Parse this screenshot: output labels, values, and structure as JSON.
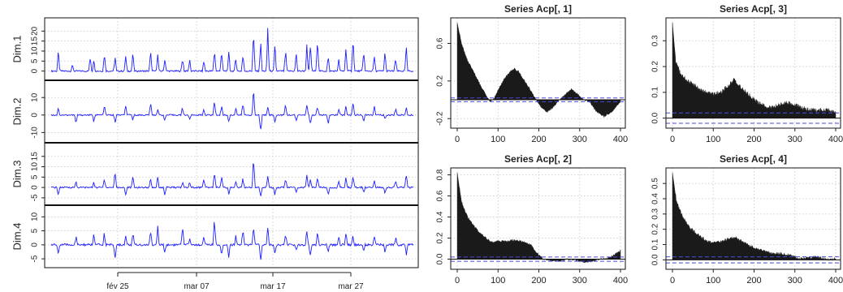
{
  "chart_data": [
    {
      "type": "line",
      "panels": [
        {
          "name": "Dim.1",
          "ylim": [
            -3,
            25
          ],
          "yticks": [
            "0",
            "5",
            "10",
            "15",
            "20"
          ],
          "baseline": 0,
          "spikes": [
            [
              0.14,
              12
            ],
            [
              0.18,
              4
            ],
            [
              0.23,
              8
            ],
            [
              0.24,
              6
            ],
            [
              0.27,
              12
            ],
            [
              0.3,
              9
            ],
            [
              0.33,
              9
            ],
            [
              0.35,
              10
            ],
            [
              0.4,
              13
            ],
            [
              0.42,
              9
            ],
            [
              0.44,
              7
            ],
            [
              0.49,
              8
            ],
            [
              0.51,
              7
            ],
            [
              0.55,
              6
            ],
            [
              0.58,
              14
            ],
            [
              0.6,
              12
            ],
            [
              0.62,
              11
            ],
            [
              0.64,
              8
            ],
            [
              0.66,
              10
            ],
            [
              0.69,
              25
            ],
            [
              0.71,
              17
            ],
            [
              0.73,
              22
            ],
            [
              0.75,
              14
            ],
            [
              0.78,
              12
            ],
            [
              0.81,
              10
            ],
            [
              0.84,
              14
            ],
            [
              0.85,
              17
            ],
            [
              0.87,
              20
            ],
            [
              0.9,
              9
            ],
            [
              0.93,
              6
            ],
            [
              0.95,
              13
            ],
            [
              0.97,
              20
            ],
            [
              1.0,
              12
            ],
            [
              1.03,
              9
            ],
            [
              1.06,
              11
            ],
            [
              1.09,
              7
            ],
            [
              1.12,
              13
            ]
          ]
        },
        {
          "name": "Dim.2",
          "ylim": [
            -14,
            18
          ],
          "yticks": [
            "-10",
            "0",
            "10"
          ],
          "baseline": 0,
          "spikes": [
            [
              0.14,
              5
            ],
            [
              0.19,
              -6
            ],
            [
              0.24,
              -4
            ],
            [
              0.27,
              7
            ],
            [
              0.3,
              -5
            ],
            [
              0.33,
              6
            ],
            [
              0.35,
              -3
            ],
            [
              0.4,
              9
            ],
            [
              0.42,
              4
            ],
            [
              0.44,
              -4
            ],
            [
              0.49,
              5
            ],
            [
              0.51,
              -3
            ],
            [
              0.55,
              4
            ],
            [
              0.58,
              10
            ],
            [
              0.6,
              6
            ],
            [
              0.62,
              -5
            ],
            [
              0.64,
              5
            ],
            [
              0.66,
              8
            ],
            [
              0.69,
              16
            ],
            [
              0.71,
              -12
            ],
            [
              0.73,
              6
            ],
            [
              0.75,
              -5
            ],
            [
              0.78,
              7
            ],
            [
              0.81,
              -4
            ],
            [
              0.84,
              7
            ],
            [
              0.85,
              -7
            ],
            [
              0.87,
              6
            ],
            [
              0.9,
              -6
            ],
            [
              0.93,
              4
            ],
            [
              0.95,
              6
            ],
            [
              0.97,
              9
            ],
            [
              1.0,
              -4
            ],
            [
              1.03,
              6
            ],
            [
              1.06,
              -3
            ],
            [
              1.09,
              4
            ],
            [
              1.12,
              5
            ]
          ]
        },
        {
          "name": "Dim.3",
          "ylim": [
            -7,
            20
          ],
          "yticks": [
            "-5",
            "0",
            "5",
            "10",
            "15"
          ],
          "baseline": 0,
          "spikes": [
            [
              0.14,
              -5
            ],
            [
              0.19,
              3
            ],
            [
              0.24,
              3
            ],
            [
              0.27,
              5
            ],
            [
              0.3,
              9
            ],
            [
              0.33,
              -4
            ],
            [
              0.35,
              7
            ],
            [
              0.4,
              5
            ],
            [
              0.42,
              6
            ],
            [
              0.44,
              -4
            ],
            [
              0.49,
              3
            ],
            [
              0.51,
              3
            ],
            [
              0.55,
              5
            ],
            [
              0.58,
              9
            ],
            [
              0.6,
              6
            ],
            [
              0.62,
              -4
            ],
            [
              0.64,
              4
            ],
            [
              0.66,
              5
            ],
            [
              0.69,
              18
            ],
            [
              0.71,
              -6
            ],
            [
              0.73,
              8
            ],
            [
              0.75,
              -4
            ],
            [
              0.78,
              5
            ],
            [
              0.81,
              -3
            ],
            [
              0.84,
              8
            ],
            [
              0.85,
              5
            ],
            [
              0.87,
              7
            ],
            [
              0.9,
              -4
            ],
            [
              0.93,
              3
            ],
            [
              0.95,
              5
            ],
            [
              0.97,
              6
            ],
            [
              1.0,
              -3
            ],
            [
              1.03,
              4
            ],
            [
              1.06,
              -3
            ],
            [
              1.09,
              4
            ],
            [
              1.12,
              8
            ]
          ]
        },
        {
          "name": "Dim.4",
          "ylim": [
            -7,
            13
          ],
          "yticks": [
            "-5",
            "0",
            "5",
            "10"
          ],
          "baseline": 0,
          "spikes": [
            [
              0.14,
              -4
            ],
            [
              0.19,
              3
            ],
            [
              0.24,
              4
            ],
            [
              0.27,
              5
            ],
            [
              0.3,
              -6
            ],
            [
              0.33,
              4
            ],
            [
              0.35,
              5
            ],
            [
              0.4,
              6
            ],
            [
              0.42,
              7
            ],
            [
              0.44,
              -3
            ],
            [
              0.49,
              7
            ],
            [
              0.51,
              3
            ],
            [
              0.55,
              4
            ],
            [
              0.58,
              11
            ],
            [
              0.6,
              -4
            ],
            [
              0.62,
              -5
            ],
            [
              0.64,
              4
            ],
            [
              0.66,
              6
            ],
            [
              0.69,
              8
            ],
            [
              0.71,
              -6
            ],
            [
              0.73,
              7
            ],
            [
              0.75,
              -4
            ],
            [
              0.78,
              5
            ],
            [
              0.81,
              -3
            ],
            [
              0.84,
              6
            ],
            [
              0.85,
              -5
            ],
            [
              0.87,
              6
            ],
            [
              0.9,
              -3
            ],
            [
              0.93,
              4
            ],
            [
              0.95,
              5
            ],
            [
              0.97,
              4
            ],
            [
              1.0,
              -3
            ],
            [
              1.03,
              4
            ],
            [
              1.06,
              -3
            ],
            [
              1.09,
              3
            ],
            [
              1.12,
              -4
            ]
          ]
        }
      ],
      "x_ticklabels": [
        "fév 25",
        "mar 07",
        "mar 17",
        "mar 27"
      ],
      "grid": true
    },
    {
      "type": "bar",
      "title": "Series Acp[, 1]",
      "xlim": [
        0,
        400
      ],
      "ylim": [
        -0.25,
        0.82
      ],
      "xticks": [
        "0",
        "100",
        "200",
        "300",
        "400"
      ],
      "yticks": [
        "-0.2",
        "0.2",
        "0.6"
      ],
      "ci": 0.02,
      "acf_points": [
        [
          0,
          0.82
        ],
        [
          10,
          0.6
        ],
        [
          25,
          0.42
        ],
        [
          40,
          0.3
        ],
        [
          55,
          0.17
        ],
        [
          70,
          0.05
        ],
        [
          80,
          -0.02
        ],
        [
          90,
          0.01
        ],
        [
          100,
          0.1
        ],
        [
          115,
          0.22
        ],
        [
          130,
          0.3
        ],
        [
          140,
          0.33
        ],
        [
          150,
          0.3
        ],
        [
          165,
          0.2
        ],
        [
          180,
          0.1
        ],
        [
          190,
          0.02
        ],
        [
          205,
          -0.08
        ],
        [
          220,
          -0.13
        ],
        [
          235,
          -0.08
        ],
        [
          250,
          0.0
        ],
        [
          265,
          0.06
        ],
        [
          280,
          0.11
        ],
        [
          295,
          0.06
        ],
        [
          310,
          0.0
        ],
        [
          325,
          -0.03
        ],
        [
          340,
          -0.12
        ],
        [
          360,
          -0.18
        ],
        [
          380,
          -0.12
        ],
        [
          400,
          -0.02
        ]
      ]
    },
    {
      "type": "bar",
      "title": "Series Acp[, 3]",
      "xlim": [
        0,
        400
      ],
      "ylim": [
        -0.02,
        0.37
      ],
      "xticks": [
        "0",
        "100",
        "200",
        "300",
        "400"
      ],
      "yticks": [
        "0.0",
        "0.1",
        "0.2",
        "0.3"
      ],
      "ci": 0.02,
      "acf_points": [
        [
          0,
          0.37
        ],
        [
          8,
          0.22
        ],
        [
          20,
          0.17
        ],
        [
          40,
          0.14
        ],
        [
          60,
          0.12
        ],
        [
          80,
          0.1
        ],
        [
          100,
          0.09
        ],
        [
          120,
          0.1
        ],
        [
          140,
          0.13
        ],
        [
          150,
          0.15
        ],
        [
          160,
          0.13
        ],
        [
          180,
          0.1
        ],
        [
          200,
          0.07
        ],
        [
          220,
          0.05
        ],
        [
          240,
          0.04
        ],
        [
          260,
          0.05
        ],
        [
          280,
          0.06
        ],
        [
          300,
          0.05
        ],
        [
          320,
          0.04
        ],
        [
          340,
          0.03
        ],
        [
          360,
          0.03
        ],
        [
          380,
          0.03
        ],
        [
          400,
          0.02
        ]
      ]
    },
    {
      "type": "bar",
      "title": "Series Acp[, 2]",
      "xlim": [
        0,
        400
      ],
      "ylim": [
        -0.05,
        0.82
      ],
      "xticks": [
        "0",
        "100",
        "200",
        "300",
        "400"
      ],
      "yticks": [
        "0.0",
        "0.2",
        "0.4",
        "0.6",
        "0.8"
      ],
      "ci": 0.02,
      "acf_points": [
        [
          0,
          0.82
        ],
        [
          10,
          0.55
        ],
        [
          25,
          0.4
        ],
        [
          40,
          0.32
        ],
        [
          55,
          0.25
        ],
        [
          70,
          0.2
        ],
        [
          85,
          0.16
        ],
        [
          100,
          0.17
        ],
        [
          120,
          0.17
        ],
        [
          140,
          0.18
        ],
        [
          160,
          0.17
        ],
        [
          180,
          0.14
        ],
        [
          195,
          0.06
        ],
        [
          210,
          0.0
        ],
        [
          230,
          -0.01
        ],
        [
          250,
          -0.02
        ],
        [
          270,
          0.0
        ],
        [
          290,
          -0.01
        ],
        [
          310,
          -0.03
        ],
        [
          330,
          -0.02
        ],
        [
          350,
          0.0
        ],
        [
          370,
          0.01
        ],
        [
          385,
          0.04
        ],
        [
          400,
          0.08
        ]
      ]
    },
    {
      "type": "bar",
      "title": "Series Acp[, 4]",
      "xlim": [
        0,
        400
      ],
      "ylim": [
        -0.03,
        0.57
      ],
      "xticks": [
        "0",
        "100",
        "200",
        "300",
        "400"
      ],
      "yticks": [
        "0.0",
        "0.1",
        "0.2",
        "0.3",
        "0.4",
        "0.5"
      ],
      "ci": 0.02,
      "acf_points": [
        [
          0,
          0.57
        ],
        [
          10,
          0.38
        ],
        [
          25,
          0.28
        ],
        [
          40,
          0.22
        ],
        [
          55,
          0.18
        ],
        [
          70,
          0.15
        ],
        [
          85,
          0.12
        ],
        [
          100,
          0.11
        ],
        [
          120,
          0.12
        ],
        [
          140,
          0.14
        ],
        [
          155,
          0.15
        ],
        [
          170,
          0.12
        ],
        [
          190,
          0.09
        ],
        [
          210,
          0.07
        ],
        [
          230,
          0.05
        ],
        [
          250,
          0.04
        ],
        [
          270,
          0.04
        ],
        [
          290,
          0.03
        ],
        [
          310,
          0.01
        ],
        [
          330,
          0.01
        ],
        [
          350,
          0.02
        ],
        [
          370,
          0.01
        ],
        [
          390,
          0.0
        ],
        [
          400,
          0.01
        ]
      ]
    }
  ]
}
